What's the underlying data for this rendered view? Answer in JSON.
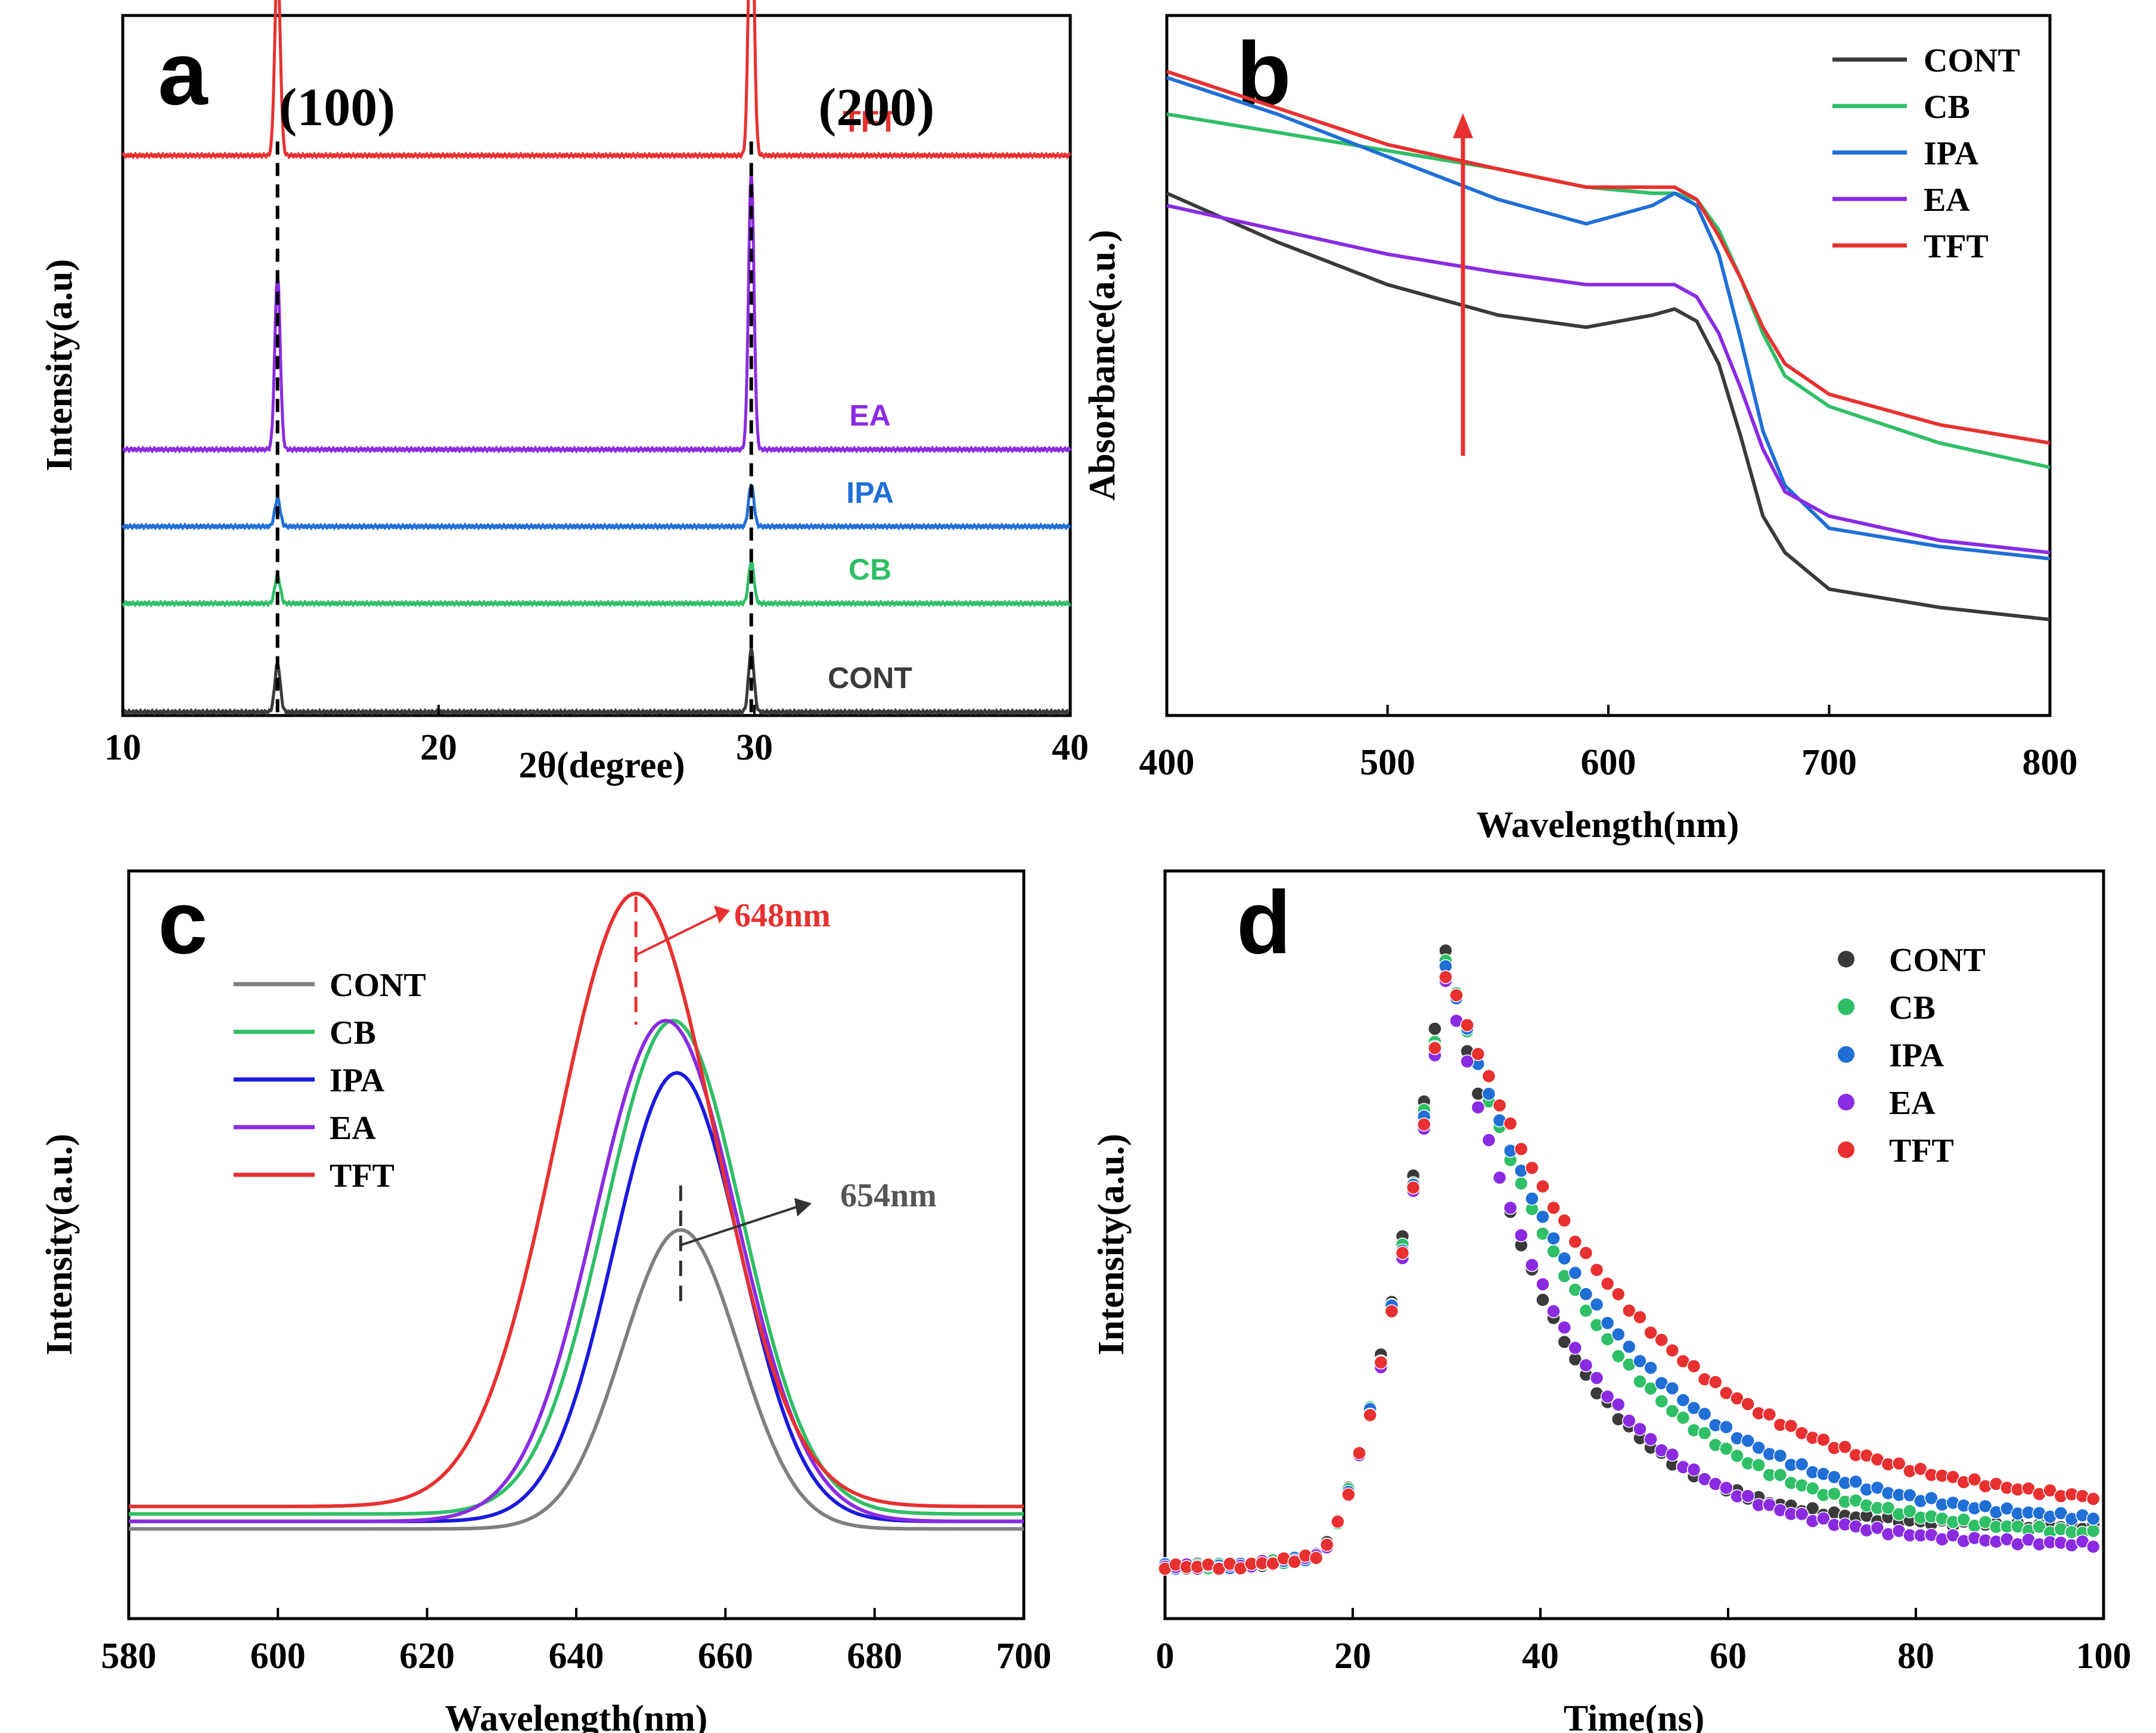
{
  "figure": {
    "colors": {
      "CONT": "#3a3a3a",
      "CB": "#2fbf66",
      "IPA": "#1f6fd6",
      "EA": "#8a2be2",
      "TFT": "#e83030",
      "CONT_c": "#7f7f7f",
      "IPA_c": "#1a1adf"
    }
  },
  "chart_data": [
    {
      "panel": "a",
      "type": "line",
      "xlabel": "2θ(degree)",
      "ylabel": "Intensity(a.u)",
      "xlim": [
        10,
        40
      ],
      "xticks": [
        "10",
        "20",
        "30",
        "40"
      ],
      "peak_labels": [
        "(100)",
        "(200)"
      ],
      "peak_positions": [
        14.9,
        29.9
      ],
      "series": [
        {
          "name": "TFT",
          "offset": 0.8,
          "peaks": [
            0.28,
            0.42
          ]
        },
        {
          "name": "EA",
          "offset": 0.38,
          "peaks": [
            0.25,
            0.4
          ]
        },
        {
          "name": "IPA",
          "offset": 0.27,
          "peaks": [
            0.04,
            0.06
          ]
        },
        {
          "name": "CB",
          "offset": 0.16,
          "peaks": [
            0.04,
            0.06
          ]
        },
        {
          "name": "CONT",
          "offset": 0.005,
          "peaks": [
            0.07,
            0.09
          ]
        }
      ]
    },
    {
      "panel": "b",
      "type": "line",
      "xlabel": "Wavelength(nm)",
      "ylabel": "Absorbance(a.u.)",
      "xlim": [
        400,
        800
      ],
      "xticks": [
        "400",
        "500",
        "600",
        "700",
        "800"
      ],
      "legend": [
        "CONT",
        "CB",
        "IPA",
        "EA",
        "TFT"
      ],
      "x": [
        400,
        450,
        500,
        550,
        590,
        620,
        630,
        640,
        650,
        660,
        670,
        680,
        700,
        750,
        800
      ],
      "series": [
        {
          "name": "CONT",
          "values": [
            0.8,
            0.72,
            0.65,
            0.6,
            0.58,
            0.6,
            0.61,
            0.59,
            0.52,
            0.4,
            0.27,
            0.21,
            0.15,
            0.12,
            0.1
          ]
        },
        {
          "name": "CB",
          "values": [
            0.93,
            0.9,
            0.87,
            0.84,
            0.81,
            0.8,
            0.8,
            0.79,
            0.74,
            0.66,
            0.57,
            0.5,
            0.45,
            0.39,
            0.35
          ]
        },
        {
          "name": "IPA",
          "values": [
            0.99,
            0.93,
            0.86,
            0.79,
            0.75,
            0.78,
            0.8,
            0.78,
            0.7,
            0.56,
            0.41,
            0.32,
            0.25,
            0.22,
            0.2
          ]
        },
        {
          "name": "EA",
          "values": [
            0.78,
            0.74,
            0.7,
            0.67,
            0.65,
            0.65,
            0.65,
            0.63,
            0.57,
            0.48,
            0.38,
            0.31,
            0.27,
            0.23,
            0.21
          ]
        },
        {
          "name": "TFT",
          "values": [
            1.0,
            0.94,
            0.88,
            0.84,
            0.81,
            0.81,
            0.81,
            0.79,
            0.73,
            0.66,
            0.58,
            0.52,
            0.47,
            0.42,
            0.39
          ]
        }
      ]
    },
    {
      "panel": "c",
      "type": "line",
      "xlabel": "Wavelength(nm)",
      "ylabel": "Intensity(a.u.)",
      "xlim": [
        580,
        700
      ],
      "xticks": [
        "580",
        "600",
        "620",
        "640",
        "660",
        "680",
        "700"
      ],
      "legend": [
        "CONT",
        "CB",
        "IPA",
        "EA",
        "TFT"
      ],
      "annotations": [
        "648nm",
        "654nm"
      ],
      "series": [
        {
          "name": "CONT",
          "peak_nm": 654,
          "amplitude": 0.4,
          "sigma": 11
        },
        {
          "name": "CB",
          "peak_nm": 653,
          "amplitude": 0.66,
          "sigma": 13
        },
        {
          "name": "IPA",
          "peak_nm": 653.5,
          "amplitude": 0.6,
          "sigma": 12
        },
        {
          "name": "EA",
          "peak_nm": 652,
          "amplitude": 0.67,
          "sigma": 13.5
        },
        {
          "name": "TFT",
          "peak_nm": 648,
          "amplitude": 0.82,
          "sigma": 15
        }
      ]
    },
    {
      "panel": "d",
      "type": "scatter",
      "xlabel": "Time(ns)",
      "ylabel": "Intensity(a.u.)",
      "xlim": [
        0,
        100
      ],
      "xticks": [
        "0",
        "20",
        "40",
        "60",
        "80",
        "100"
      ],
      "legend": [
        "CONT",
        "CB",
        "IPA",
        "EA",
        "TFT"
      ],
      "series": [
        {
          "name": "CONT",
          "peak": 0.97,
          "tau": 11,
          "floor": 0.06
        },
        {
          "name": "CB",
          "peak": 0.95,
          "tau": 16,
          "floor": 0.04
        },
        {
          "name": "IPA",
          "peak": 0.94,
          "tau": 17,
          "floor": 0.06
        },
        {
          "name": "EA",
          "peak": 0.92,
          "tau": 13,
          "floor": 0.03
        },
        {
          "name": "TFT",
          "peak": 0.93,
          "tau": 20,
          "floor": 0.08
        }
      ]
    }
  ]
}
